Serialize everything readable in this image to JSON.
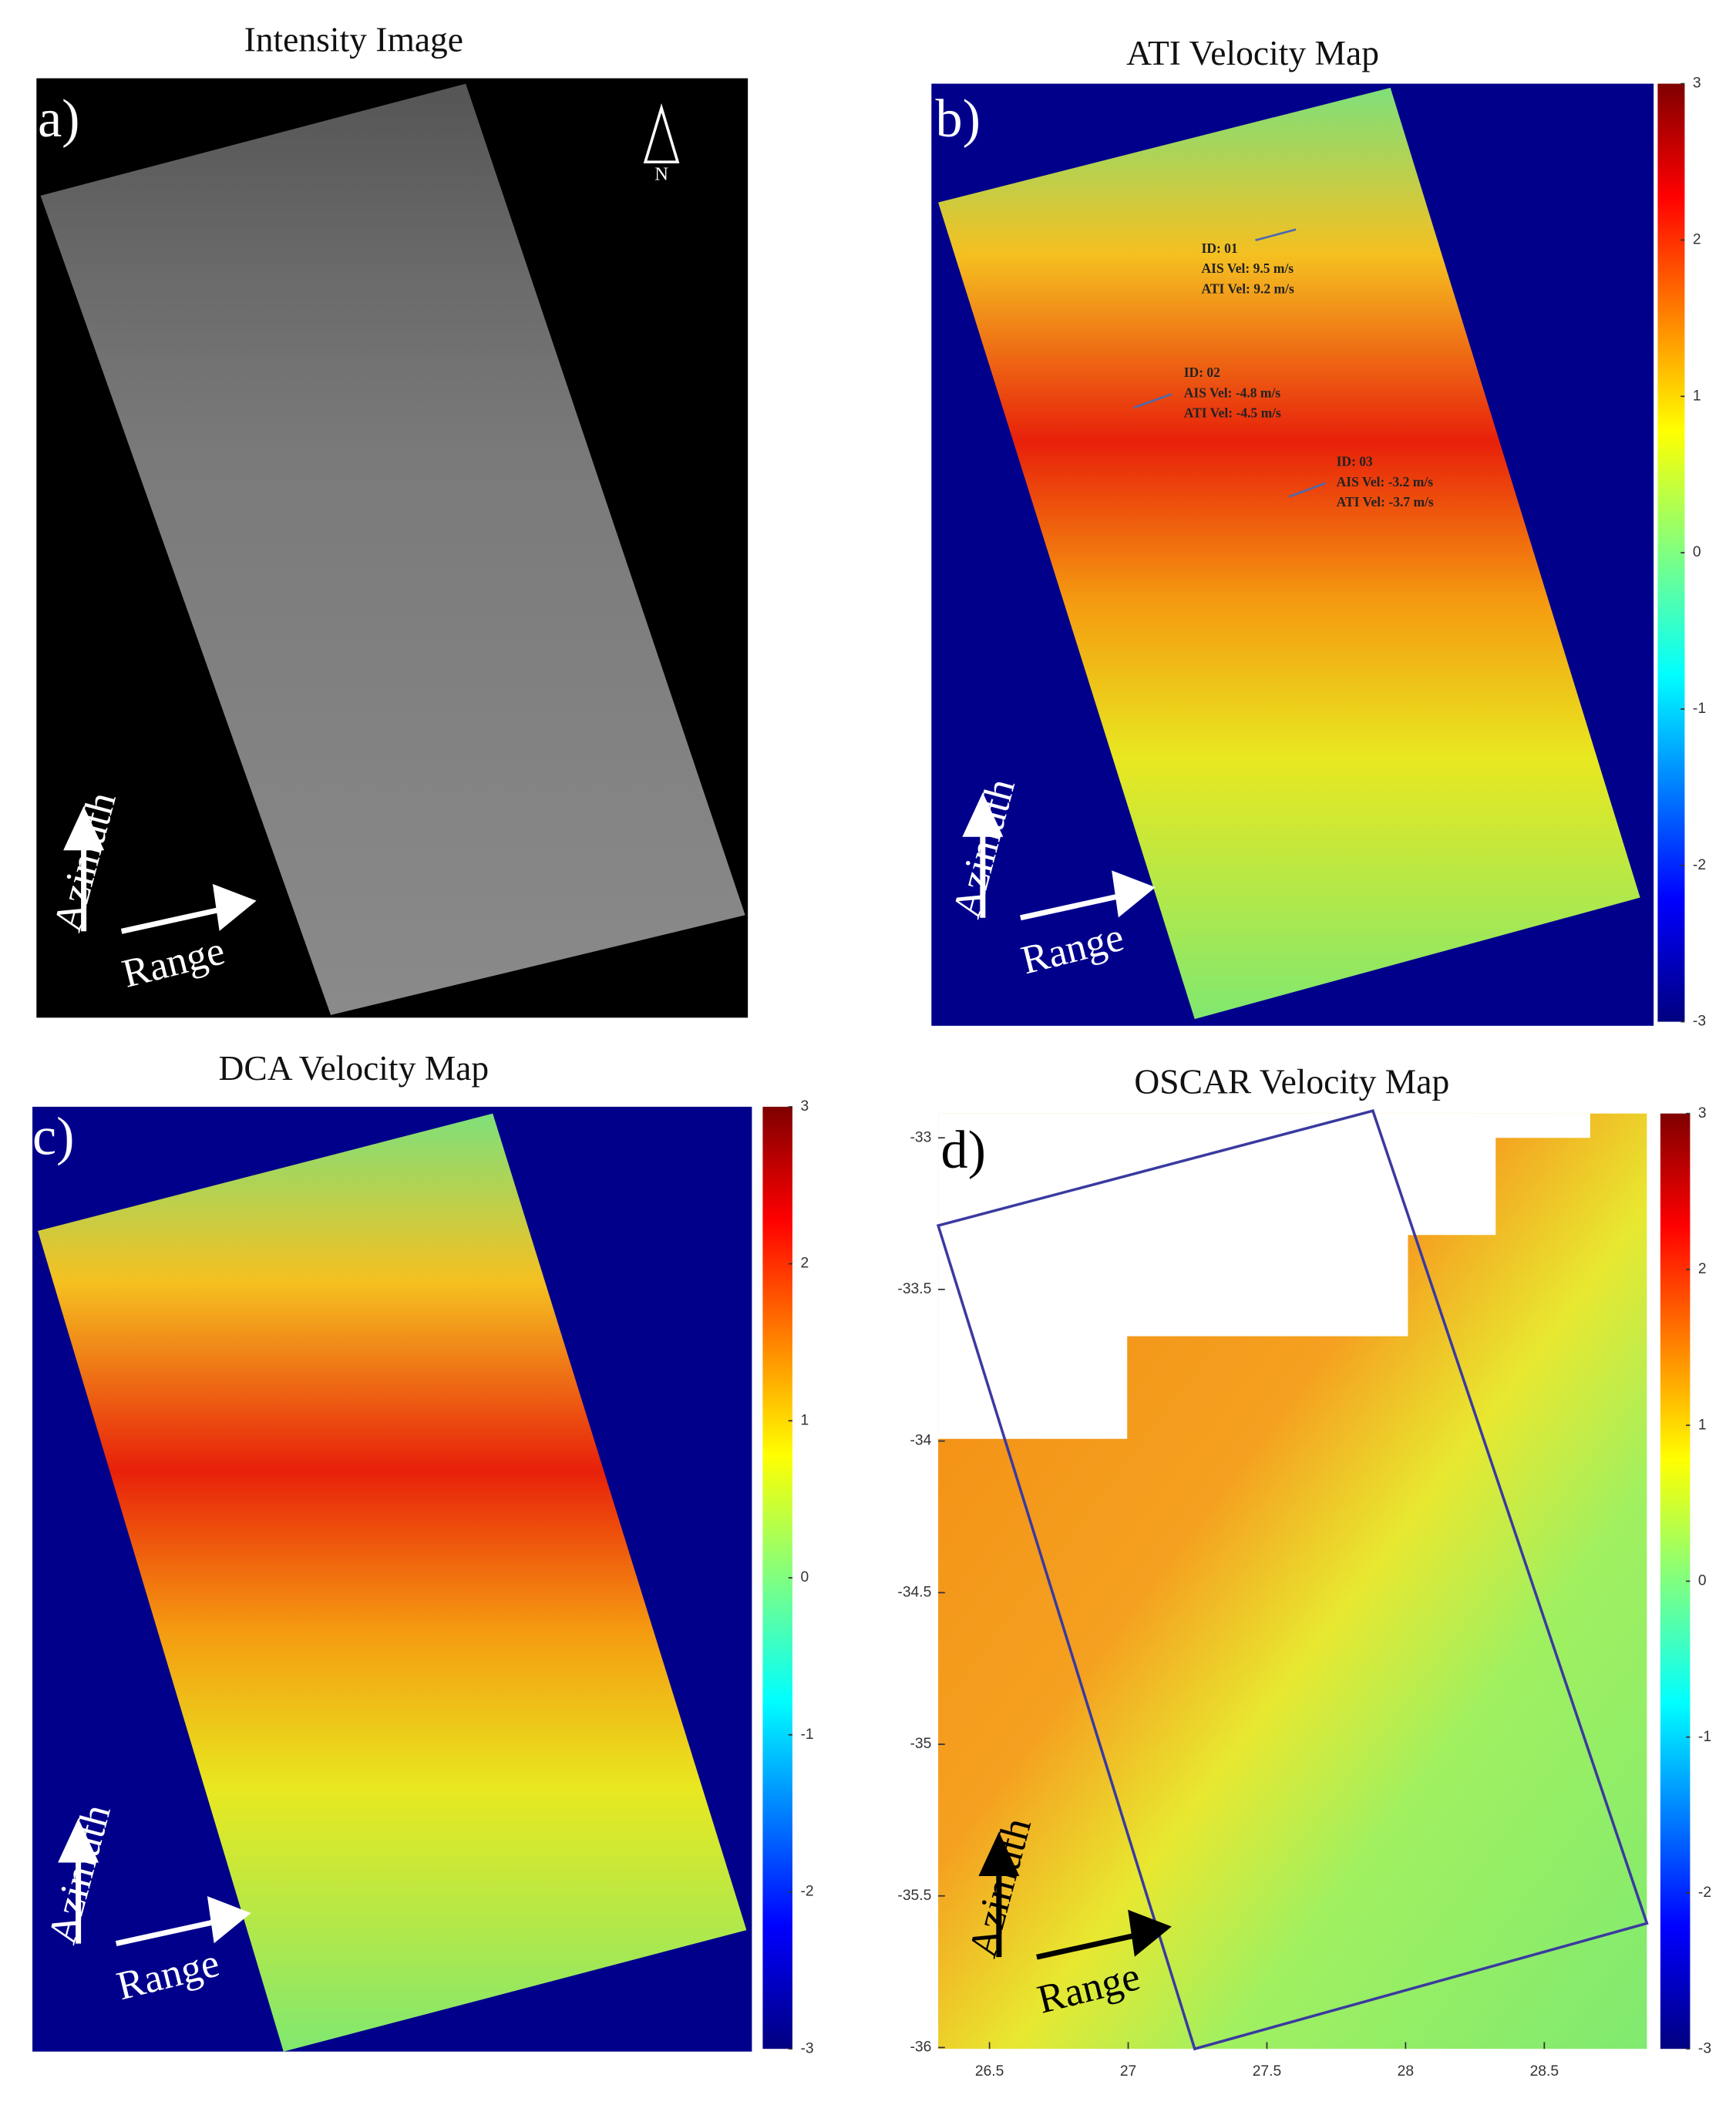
{
  "panels": [
    {
      "title": "Intensity Image",
      "label": "a)",
      "north": "N",
      "azimuth": "Azimuth",
      "range": "Range"
    },
    {
      "title": "ATI Velocity Map",
      "label": "b)",
      "azimuth": "Azimuth",
      "range": "Range",
      "colorbar_ticks": [
        3,
        2,
        1,
        0,
        -1,
        -2,
        -3
      ],
      "annotations": [
        {
          "id": "ID: 01",
          "ais": "AIS Vel: 9.5 m/s",
          "ati": "ATI Vel: 9.2 m/s"
        },
        {
          "id": "ID: 02",
          "ais": "AIS Vel: -4.8 m/s",
          "ati": "ATI Vel: -4.5 m/s"
        },
        {
          "id": "ID: 03",
          "ais": "AIS Vel: -3.2 m/s",
          "ati": "ATI Vel: -3.7 m/s"
        }
      ]
    },
    {
      "title": "DCA Velocity Map",
      "label": "c)",
      "azimuth": "Azimuth",
      "range": "Range",
      "colorbar_ticks": [
        3,
        2,
        1,
        0,
        -1,
        -2,
        -3
      ]
    },
    {
      "title": "OSCAR Velocity Map",
      "label": "d)",
      "azimuth": "Azimuth",
      "range": "Range",
      "colorbar_ticks": [
        3,
        2,
        1,
        0,
        -1,
        -2,
        -3
      ],
      "yticks": [
        -33,
        -33.5,
        -34,
        -34.5,
        -35,
        -35.5,
        -36
      ],
      "xticks": [
        26.5,
        27,
        27.5,
        28,
        28.5
      ]
    }
  ]
}
